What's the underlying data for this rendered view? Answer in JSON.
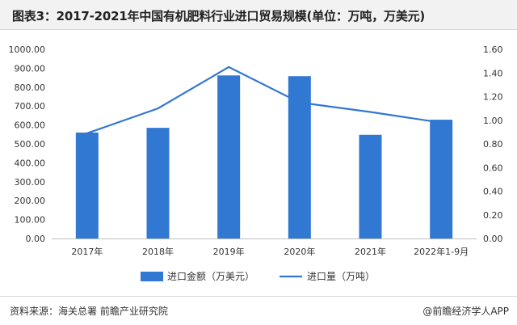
{
  "title": "图表3：2017-2021年中国有机肥料行业进口贸易规模(单位：万吨，万美元)",
  "chart_data": {
    "type": "bar",
    "categories": [
      "2017年",
      "2018年",
      "2019年",
      "2020年",
      "2021年",
      "2022年1-9月"
    ],
    "series": [
      {
        "name": "进口金额（万美元）",
        "type": "bar",
        "axis": "left",
        "color": "#3178d3",
        "values": [
          560,
          585,
          862,
          858,
          548,
          628
        ]
      },
      {
        "name": "进口量（万吨）",
        "type": "line",
        "axis": "right",
        "color": "#3178d3",
        "values": [
          0.89,
          1.1,
          1.45,
          1.15,
          1.07,
          0.98
        ]
      }
    ],
    "y_left": {
      "min": 0,
      "max": 1000,
      "step": 100,
      "ticks": [
        "0.00",
        "100.00",
        "200.00",
        "300.00",
        "400.00",
        "500.00",
        "600.00",
        "700.00",
        "800.00",
        "900.00",
        "1000.00"
      ]
    },
    "y_right": {
      "min": 0,
      "max": 1.6,
      "step": 0.2,
      "ticks": [
        "0.00",
        "0.20",
        "0.40",
        "0.60",
        "0.80",
        "1.00",
        "1.20",
        "1.40",
        "1.60"
      ]
    },
    "legend_position": "bottom-center",
    "grid": false
  },
  "footer": {
    "source": "资料来源：海关总署 前瞻产业研究院",
    "brand": "@前瞻经济学人APP"
  }
}
